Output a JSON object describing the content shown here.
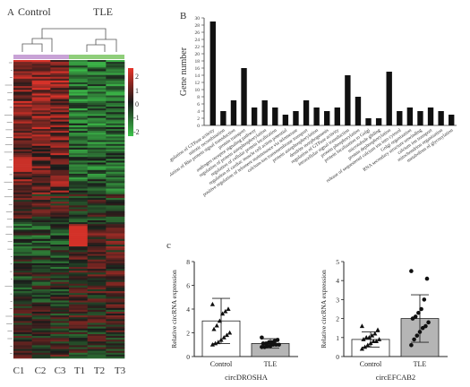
{
  "panelA": {
    "label": "A",
    "groups": [
      "Control",
      "TLE"
    ],
    "columns": [
      "C1",
      "C2",
      "C3",
      "T1",
      "T2",
      "T3"
    ],
    "colorbar_ticks": [
      "2",
      "1",
      "0",
      "-1",
      "-2"
    ],
    "colors": {
      "high": "#e8342a",
      "mid": "#1a1a1a",
      "low": "#3dc24b",
      "control_bar": "#c8a2d6",
      "tle_bar": "#8fce7a"
    }
  },
  "panelB": {
    "label": "B"
  },
  "panelC": {
    "label": "c"
  },
  "chart_data": [
    {
      "type": "bar",
      "ylabel": "Gene number",
      "ylim": [
        0,
        30
      ],
      "yticks": [
        0,
        2,
        4,
        6,
        8,
        10,
        12,
        14,
        16,
        18,
        20,
        22,
        24,
        26,
        28,
        30
      ],
      "categories": [
        "positive regulation of GTPase activity",
        "mitotic recombination",
        "regulation of Rho protein signal transduction",
        "protein transport",
        "androgen receptor signaling pathway",
        "regulation of protein autophosphorylation",
        "regulation of cellular protein localization",
        "regulation of cardiac muscle cell action potential",
        "positive regulation of telomere maintenance via telomerase",
        "calcium-ion transmembrane transport",
        "protein autophosphorylation",
        "dendrite morphogenesis",
        "regulation of GTPase activity",
        "intracellular signal transduction",
        "protein phosphorylation",
        "protein localization to Golgi",
        "microtubule gliding",
        "protein dephosphorylation",
        "release of sequestered calcium ion into cytosol",
        "Golgi organization",
        "RNA secondary structure unwinding",
        "calcium ion transport",
        "mitochondrion organization",
        "metabolism of glycosylation"
      ],
      "values": [
        29,
        4,
        7,
        16,
        5,
        7,
        5,
        3,
        4,
        7,
        5,
        4,
        5,
        14,
        8,
        2,
        2,
        15,
        4,
        5,
        4,
        5,
        4,
        3
      ]
    },
    {
      "type": "bar",
      "title": "circDROSHA",
      "ylabel": "Relative circRNA expression",
      "ylim": [
        0,
        8
      ],
      "yticks": [
        0,
        2,
        4,
        6,
        8
      ],
      "categories": [
        "Control",
        "TLE"
      ],
      "values": [
        3.0,
        1.1
      ],
      "errors": [
        1.9,
        0.4
      ],
      "points": [
        [
          4.4,
          4.0,
          3.8,
          3.6,
          3.0,
          2.6,
          2.3,
          2.0,
          1.8,
          1.6,
          1.4,
          1.2,
          1.1,
          1.0
        ],
        [
          1.6,
          1.4,
          1.3,
          1.2,
          1.2,
          1.1,
          1.1,
          1.0,
          1.0,
          1.0,
          0.9,
          0.9,
          0.8,
          0.8
        ]
      ]
    },
    {
      "type": "bar",
      "title": "circEFCAB2",
      "ylabel": "Relative circRNA expression",
      "ylim": [
        0,
        5
      ],
      "yticks": [
        0,
        1,
        2,
        3,
        4,
        5
      ],
      "categories": [
        "Control",
        "TLE"
      ],
      "values": [
        0.9,
        2.0
      ],
      "errors": [
        0.4,
        1.25
      ],
      "points": [
        [
          1.6,
          1.4,
          1.2,
          1.1,
          1.0,
          1.0,
          0.9,
          0.9,
          0.8,
          0.8,
          0.7,
          0.6,
          0.5,
          0.4
        ],
        [
          4.5,
          4.1,
          3.0,
          2.5,
          2.3,
          2.1,
          2.0,
          1.8,
          1.6,
          1.5,
          1.3,
          1.1,
          0.9,
          0.6
        ]
      ]
    }
  ]
}
